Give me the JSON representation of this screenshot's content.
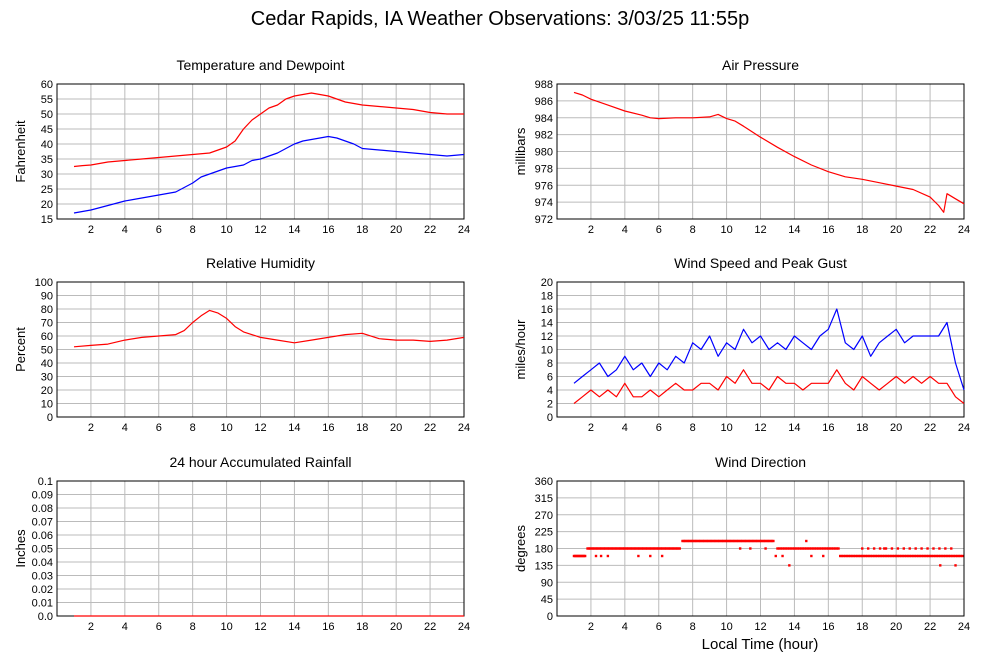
{
  "page_title": "Cedar Rapids, IA Weather Observations: 3/03/25 11:55p",
  "x_axis_label": "Local Time (hour)",
  "chart_data": [
    {
      "type": "line",
      "title": "Temperature and Dewpoint",
      "ylabel": "Fahrenheit",
      "xlabel": "",
      "xlim": [
        0,
        24
      ],
      "ylim": [
        15,
        60
      ],
      "xticks": [
        2,
        4,
        6,
        8,
        10,
        12,
        14,
        16,
        18,
        20,
        22,
        24
      ],
      "yticks": [
        15,
        20,
        25,
        30,
        35,
        40,
        45,
        50,
        55,
        60
      ],
      "grid": true,
      "series": [
        {
          "color": "#ff0000",
          "x": [
            1,
            1.5,
            2,
            3,
            4,
            5,
            6,
            7,
            8,
            9,
            9.5,
            10,
            10.5,
            11,
            11.5,
            12,
            12.5,
            13,
            13.5,
            14,
            14.5,
            15,
            15.5,
            16,
            16.5,
            17,
            18,
            19,
            20,
            21,
            22,
            23,
            24
          ],
          "y": [
            32.5,
            32.8,
            33,
            34,
            34.5,
            35,
            35.5,
            36,
            36.5,
            37,
            38,
            39,
            41,
            45,
            48,
            50,
            52,
            53,
            55,
            56,
            56.5,
            57,
            56.5,
            56,
            55,
            54,
            53,
            52.5,
            52,
            51.5,
            50.5,
            50,
            50
          ]
        },
        {
          "color": "#0000ff",
          "x": [
            1,
            1.5,
            2,
            3,
            4,
            5,
            6,
            7,
            8,
            8.5,
            9,
            9.5,
            10,
            10.5,
            11,
            11.5,
            12,
            12.5,
            13,
            13.5,
            14,
            14.5,
            15,
            15.5,
            16,
            16.5,
            17,
            17.5,
            18,
            19,
            20,
            21,
            22,
            23,
            24
          ],
          "y": [
            17,
            17.5,
            18,
            19.5,
            21,
            22,
            23,
            24,
            27,
            29,
            30,
            31,
            32,
            32.5,
            33,
            34.5,
            35,
            36,
            37,
            38.5,
            40,
            41,
            41.5,
            42,
            42.5,
            42,
            41,
            40,
            38.5,
            38,
            37.5,
            37,
            36.5,
            36,
            36.5
          ]
        }
      ]
    },
    {
      "type": "line",
      "title": "Air Pressure",
      "ylabel": "millibars",
      "xlabel": "",
      "xlim": [
        0,
        24
      ],
      "ylim": [
        972,
        988
      ],
      "xticks": [
        2,
        4,
        6,
        8,
        10,
        12,
        14,
        16,
        18,
        20,
        22,
        24
      ],
      "yticks": [
        972,
        974,
        976,
        978,
        980,
        982,
        984,
        986,
        988
      ],
      "grid": true,
      "series": [
        {
          "color": "#ff0000",
          "x": [
            1,
            1.5,
            2,
            3,
            4,
            5,
            5.5,
            6,
            7,
            8,
            9,
            9.5,
            10,
            10.5,
            11,
            12,
            13,
            14,
            15,
            16,
            17,
            18,
            19,
            20,
            21,
            22,
            22.5,
            22.8,
            23,
            23.5,
            24
          ],
          "y": [
            987,
            986.7,
            986.2,
            985.5,
            984.8,
            984.3,
            984,
            983.9,
            984,
            984,
            984.1,
            984.4,
            983.9,
            983.6,
            983,
            981.7,
            980.5,
            979.4,
            978.4,
            977.6,
            977,
            976.7,
            976.3,
            975.9,
            975.5,
            974.6,
            973.6,
            972.8,
            975,
            974.4,
            973.8
          ]
        }
      ]
    },
    {
      "type": "line",
      "title": "Relative Humidity",
      "ylabel": "Percent",
      "xlabel": "",
      "xlim": [
        0,
        24
      ],
      "ylim": [
        0,
        100
      ],
      "xticks": [
        2,
        4,
        6,
        8,
        10,
        12,
        14,
        16,
        18,
        20,
        22,
        24
      ],
      "yticks": [
        0,
        10,
        20,
        30,
        40,
        50,
        60,
        70,
        80,
        90,
        100
      ],
      "grid": true,
      "series": [
        {
          "color": "#ff0000",
          "x": [
            1,
            2,
            3,
            4,
            5,
            6,
            7,
            7.5,
            8,
            8.5,
            9,
            9.5,
            10,
            10.5,
            11,
            12,
            13,
            14,
            15,
            16,
            17,
            18,
            19,
            20,
            21,
            22,
            23,
            24
          ],
          "y": [
            52,
            53,
            54,
            57,
            59,
            60,
            61,
            64,
            70,
            75,
            79,
            77,
            73,
            67,
            63,
            59,
            57,
            55,
            57,
            59,
            61,
            62,
            58,
            57,
            57,
            56,
            57,
            59
          ]
        }
      ]
    },
    {
      "type": "line",
      "title": "Wind Speed and Peak Gust",
      "ylabel": "miles/hour",
      "xlabel": "",
      "xlim": [
        0,
        24
      ],
      "ylim": [
        0,
        20
      ],
      "xticks": [
        2,
        4,
        6,
        8,
        10,
        12,
        14,
        16,
        18,
        20,
        22,
        24
      ],
      "yticks": [
        0,
        2,
        4,
        6,
        8,
        10,
        12,
        14,
        16,
        18,
        20
      ],
      "grid": true,
      "series": [
        {
          "color": "#0000ff",
          "x": [
            1,
            1.5,
            2,
            2.5,
            3,
            3.5,
            4,
            4.5,
            5,
            5.5,
            6,
            6.5,
            7,
            7.5,
            8,
            8.5,
            9,
            9.5,
            10,
            10.5,
            11,
            11.5,
            12,
            12.5,
            13,
            13.5,
            14,
            14.5,
            15,
            15.5,
            16,
            16.5,
            17,
            17.5,
            18,
            18.5,
            19,
            19.5,
            20,
            20.5,
            21,
            21.5,
            22,
            22.5,
            23,
            23.5,
            24
          ],
          "y": [
            5,
            6,
            7,
            8,
            6,
            7,
            9,
            7,
            8,
            6,
            8,
            7,
            9,
            8,
            11,
            10,
            12,
            9,
            11,
            10,
            13,
            11,
            12,
            10,
            11,
            10,
            12,
            11,
            10,
            12,
            13,
            16,
            11,
            10,
            12,
            9,
            11,
            12,
            13,
            11,
            12,
            12,
            12,
            12,
            14,
            8,
            4
          ]
        },
        {
          "color": "#ff0000",
          "x": [
            1,
            1.5,
            2,
            2.5,
            3,
            3.5,
            4,
            4.5,
            5,
            5.5,
            6,
            6.5,
            7,
            7.5,
            8,
            8.5,
            9,
            9.5,
            10,
            10.5,
            11,
            11.5,
            12,
            12.5,
            13,
            13.5,
            14,
            14.5,
            15,
            15.5,
            16,
            16.5,
            17,
            17.5,
            18,
            18.5,
            19,
            19.5,
            20,
            20.5,
            21,
            21.5,
            22,
            22.5,
            23,
            23.5,
            24
          ],
          "y": [
            2,
            3,
            4,
            3,
            4,
            3,
            5,
            3,
            3,
            4,
            3,
            4,
            5,
            4,
            4,
            5,
            5,
            4,
            6,
            5,
            7,
            5,
            5,
            4,
            6,
            5,
            5,
            4,
            5,
            5,
            5,
            7,
            5,
            4,
            6,
            5,
            4,
            5,
            6,
            5,
            6,
            5,
            6,
            5,
            5,
            3,
            2
          ]
        }
      ]
    },
    {
      "type": "line",
      "title": "24 hour Accumulated Rainfall",
      "ylabel": "Inches",
      "xlabel": "",
      "xlim": [
        0,
        24
      ],
      "ylim": [
        0,
        0.1
      ],
      "xticks": [
        2,
        4,
        6,
        8,
        10,
        12,
        14,
        16,
        18,
        20,
        22,
        24
      ],
      "yticks": [
        0,
        0.01,
        0.02,
        0.03,
        0.04,
        0.05,
        0.06,
        0.07,
        0.08,
        0.09,
        0.1
      ],
      "ytick_labels": [
        "0.0",
        "0.01",
        "0.02",
        "0.03",
        "0.04",
        "0.05",
        "0.06",
        "0.07",
        "0.08",
        "0.09",
        "0.1"
      ],
      "grid": true,
      "series": [
        {
          "color": "#ff0000",
          "x": [
            1,
            24
          ],
          "y": [
            0,
            0
          ]
        }
      ]
    },
    {
      "type": "scatter",
      "title": "Wind Direction",
      "ylabel": "degrees",
      "xlabel": "Local Time (hour)",
      "xlim": [
        0,
        24
      ],
      "ylim": [
        0,
        360
      ],
      "xticks": [
        2,
        4,
        6,
        8,
        10,
        12,
        14,
        16,
        18,
        20,
        22,
        24
      ],
      "yticks": [
        0,
        45,
        90,
        135,
        180,
        225,
        270,
        315,
        360
      ],
      "grid": true,
      "series": [
        {
          "color": "#ff0000",
          "segments": [
            {
              "x0": 1.0,
              "x1": 1.7,
              "step": 0.06,
              "y": 160
            },
            {
              "x0": 1.8,
              "x1": 7.3,
              "step": 0.08,
              "y": 180
            },
            {
              "x0": 7.4,
              "x1": 12.8,
              "step": 0.08,
              "y": 200
            },
            {
              "x0": 13.0,
              "x1": 16.6,
              "step": 0.1,
              "y": 180
            },
            {
              "x0": 16.7,
              "x1": 23.9,
              "step": 0.1,
              "y": 160
            },
            {
              "x0": 18.0,
              "x1": 23.5,
              "step": 0.35,
              "y": 180
            }
          ],
          "x": [
            2.3,
            2.6,
            3.0,
            4.8,
            5.5,
            6.2,
            10.8,
            11.4,
            12.9,
            13.3,
            13.7,
            14.7,
            15.0,
            15.7,
            19.3,
            22.6,
            23.5,
            12.3
          ],
          "y": [
            160,
            160,
            160,
            160,
            160,
            160,
            180,
            180,
            160,
            160,
            135,
            200,
            160,
            160,
            180,
            135,
            135,
            180
          ]
        }
      ]
    }
  ]
}
